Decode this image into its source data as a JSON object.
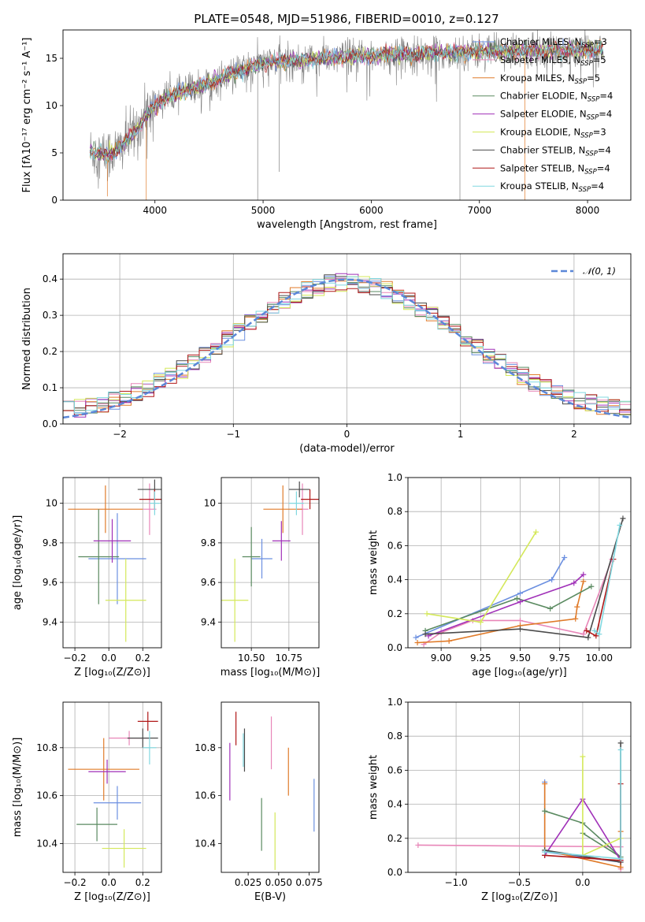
{
  "colors": {
    "Chabrier MILES": "#6b8fe0",
    "Salpeter MILES": "#e886b8",
    "Kroupa MILES": "#e07b2a",
    "Chabrier ELODIE": "#5a8a60",
    "Salpeter ELODIE": "#a030b8",
    "Kroupa ELODIE": "#d4e85a",
    "Chabrier STELIB": "#4a4a4a",
    "Salpeter STELIB": "#b01818",
    "Kroupa STELIB": "#80d8e0",
    "gauss": "#5b87d8",
    "grid": "#b0b0b0"
  },
  "chart_data": [
    {
      "id": "spectrum",
      "type": "line",
      "title": "PLATE=0548, MJD=51986, FIBERID=0010, z=0.127",
      "xlabel": "wavelength [Angstrom, rest frame]",
      "ylabel": "Flux [fλ10⁻¹⁷ erg cm⁻² s⁻¹ A⁻¹]",
      "xlim": [
        3150,
        8400
      ],
      "ylim": [
        0,
        18
      ],
      "xticks": [
        "4000",
        "5000",
        "6000",
        "7000",
        "8000"
      ],
      "yticks": [
        "0",
        "5",
        "10",
        "15"
      ],
      "grid": false,
      "legend_position": "right",
      "continuum": [
        [
          3400,
          5.2
        ],
        [
          3550,
          4.8
        ],
        [
          3650,
          5.2
        ],
        [
          3800,
          7
        ],
        [
          3950,
          9.5
        ],
        [
          4100,
          10.8
        ],
        [
          4300,
          11.6
        ],
        [
          4500,
          12.4
        ],
        [
          4700,
          13.3
        ],
        [
          5000,
          14.5
        ],
        [
          5300,
          14.8
        ],
        [
          5600,
          15.0
        ],
        [
          6000,
          15.3
        ],
        [
          6500,
          15.5
        ],
        [
          7000,
          15.7
        ],
        [
          7500,
          15.8
        ],
        [
          8000,
          15.9
        ],
        [
          8150,
          16.0
        ]
      ],
      "legend": [
        {
          "label": "Chabrier MILES, N_SSP=3",
          "pre": "Chabrier MILES, N",
          "sub": "SSP",
          "post": "=3"
        },
        {
          "label": "Salpeter MILES, N_SSP=5",
          "pre": "Salpeter MILES, N",
          "sub": "SSP",
          "post": "=5"
        },
        {
          "label": "Kroupa MILES, N_SSP=5",
          "pre": "Kroupa MILES, N",
          "sub": "SSP",
          "post": "=5"
        },
        {
          "label": "Chabrier ELODIE, N_SSP=4",
          "pre": "Chabrier ELODIE, N",
          "sub": "SSP",
          "post": "=4"
        },
        {
          "label": "Salpeter ELODIE, N_SSP=4",
          "pre": "Salpeter ELODIE, N",
          "sub": "SSP",
          "post": "=4"
        },
        {
          "label": "Kroupa ELODIE, N_SSP=3",
          "pre": "Kroupa ELODIE, N",
          "sub": "SSP",
          "post": "=3"
        },
        {
          "label": "Chabrier STELIB, N_SSP=4",
          "pre": "Chabrier STELIB, N",
          "sub": "SSP",
          "post": "=4"
        },
        {
          "label": "Salpeter STELIB, N_SSP=4",
          "pre": "Salpeter STELIB, N",
          "sub": "SSP",
          "post": "=4"
        },
        {
          "label": "Kroupa STELIB, N_SSP=4",
          "pre": "Kroupa STELIB, N",
          "sub": "SSP",
          "post": "=4"
        }
      ]
    },
    {
      "id": "residuals",
      "type": "line",
      "xlabel": "(data-model)/error",
      "ylabel": "Normed distribution",
      "xlim": [
        -2.5,
        2.5
      ],
      "ylim": [
        0,
        0.47
      ],
      "xticks": [
        -2,
        -1,
        0,
        1,
        2
      ],
      "xtick_labels": [
        "−2",
        "−1",
        "0",
        "1",
        "2"
      ],
      "yticks": [
        0,
        0.1,
        0.2,
        0.3,
        0.4
      ],
      "ytick_labels": [
        "0.0",
        "0.1",
        "0.2",
        "0.3",
        "0.4"
      ],
      "grid": true,
      "legend": "𝒩(0, 1)",
      "legend_position": "top-right",
      "histogram_bin_width": 0.1,
      "reference_curve": "standard normal N(0,1)"
    },
    {
      "id": "age-vs-Z",
      "type": "scatter",
      "xlabel": "Z [log₁₀(Z/Z⊙)]",
      "ylabel": "age  [log₁₀(age/yr)]",
      "xlim": [
        -0.27,
        0.31
      ],
      "ylim": [
        9.27,
        10.13
      ],
      "xticks": [
        -0.2,
        0.0,
        0.2
      ],
      "xtick_labels": [
        "−0.2",
        "0.0",
        "0.2"
      ],
      "yticks": [
        9.4,
        9.6,
        9.8,
        10.0
      ],
      "grid": true,
      "points": [
        {
          "series": "Chabrier MILES",
          "x": 0.05,
          "xerr": 0.17,
          "y": 9.72,
          "yerr": 0.23
        },
        {
          "series": "Salpeter MILES",
          "x": 0.24,
          "xerr": 0.04,
          "y": 9.97,
          "yerr": 0.13
        },
        {
          "series": "Kroupa MILES",
          "x": -0.02,
          "xerr": 0.22,
          "y": 9.97,
          "yerr": 0.12
        },
        {
          "series": "Chabrier ELODIE",
          "x": -0.06,
          "xerr": 0.12,
          "y": 9.73,
          "yerr": 0.24
        },
        {
          "series": "Salpeter ELODIE",
          "x": 0.02,
          "xerr": 0.11,
          "y": 9.81,
          "yerr": 0.11
        },
        {
          "series": "Kroupa ELODIE",
          "x": 0.1,
          "xerr": 0.12,
          "y": 9.51,
          "yerr": 0.21
        },
        {
          "series": "Chabrier STELIB",
          "x": 0.27,
          "xerr": 0.1,
          "y": 10.07,
          "yerr": 0.05
        },
        {
          "series": "Salpeter STELIB",
          "x": 0.27,
          "xerr": 0.09,
          "y": 10.02,
          "yerr": 0.05
        },
        {
          "series": "Kroupa STELIB",
          "x": 0.27,
          "xerr": 0.03,
          "y": 10.0,
          "yerr": 0.06
        }
      ]
    },
    {
      "id": "age-vs-mass",
      "type": "scatter",
      "xlabel": "mass [log₁₀(M/M⊙)]",
      "ylabel": "",
      "xlim": [
        10.3,
        10.95
      ],
      "ylim": [
        9.27,
        10.13
      ],
      "xticks": [
        10.5,
        10.75
      ],
      "xtick_labels": [
        "10.50",
        "10.75"
      ],
      "yticks": [
        9.4,
        9.6,
        9.8,
        10.0
      ],
      "grid": true,
      "points": [
        {
          "series": "Chabrier MILES",
          "x": 10.57,
          "xerr": 0.07,
          "y": 9.72,
          "yerr": 0.1
        },
        {
          "series": "Salpeter MILES",
          "x": 10.84,
          "xerr": 0.04,
          "y": 9.97,
          "yerr": 0.13
        },
        {
          "series": "Kroupa MILES",
          "x": 10.71,
          "xerr": 0.13,
          "y": 9.97,
          "yerr": 0.12
        },
        {
          "series": "Chabrier ELODIE",
          "x": 10.5,
          "xerr": 0.06,
          "y": 9.73,
          "yerr": 0.15
        },
        {
          "series": "Salpeter ELODIE",
          "x": 10.7,
          "xerr": 0.06,
          "y": 9.81,
          "yerr": 0.1
        },
        {
          "series": "Kroupa ELODIE",
          "x": 10.39,
          "xerr": 0.09,
          "y": 9.51,
          "yerr": 0.21
        },
        {
          "series": "Chabrier STELIB",
          "x": 10.82,
          "xerr": 0.07,
          "y": 10.07,
          "yerr": 0.04
        },
        {
          "series": "Salpeter STELIB",
          "x": 10.89,
          "xerr": 0.06,
          "y": 10.02,
          "yerr": 0.05
        },
        {
          "series": "Kroupa STELIB",
          "x": 10.8,
          "xerr": 0.05,
          "y": 10.0,
          "yerr": 0.06
        }
      ]
    },
    {
      "id": "weight-vs-age",
      "type": "line",
      "xlabel": "age  [log₁₀(age/yr)]",
      "ylabel": "mass weight",
      "xlim": [
        8.79,
        10.2
      ],
      "ylim": [
        0,
        1
      ],
      "xticks": [
        9.0,
        9.25,
        9.5,
        9.75,
        10.0
      ],
      "xtick_labels": [
        "9.00",
        "9.25",
        "9.50",
        "9.75",
        "10.00"
      ],
      "yticks": [
        0,
        0.2,
        0.4,
        0.6,
        0.8,
        1.0
      ],
      "ytick_labels": [
        "0.0",
        "0.2",
        "0.4",
        "0.6",
        "0.8",
        "1.0"
      ],
      "grid": true,
      "series": [
        {
          "name": "Chabrier MILES",
          "points": [
            [
              8.84,
              0.06
            ],
            [
              9.5,
              0.32
            ],
            [
              9.7,
              0.4
            ],
            [
              9.78,
              0.53
            ]
          ]
        },
        {
          "name": "Salpeter MILES",
          "points": [
            [
              8.89,
              0.02
            ],
            [
              9.0,
              0.09
            ],
            [
              9.2,
              0.16
            ],
            [
              9.5,
              0.16
            ],
            [
              9.9,
              0.08
            ],
            [
              10.08,
              0.52
            ]
          ]
        },
        {
          "name": "Kroupa MILES",
          "points": [
            [
              8.85,
              0.03
            ],
            [
              9.05,
              0.04
            ],
            [
              9.5,
              0.13
            ],
            [
              9.85,
              0.17
            ],
            [
              9.86,
              0.24
            ],
            [
              9.9,
              0.39
            ]
          ]
        },
        {
          "name": "Chabrier ELODIE",
          "points": [
            [
              8.9,
              0.1
            ],
            [
              9.48,
              0.29
            ],
            [
              9.69,
              0.23
            ],
            [
              9.95,
              0.36
            ]
          ]
        },
        {
          "name": "Salpeter ELODIE",
          "points": [
            [
              8.92,
              0.07
            ],
            [
              9.5,
              0.27
            ],
            [
              9.84,
              0.38
            ],
            [
              9.9,
              0.43
            ]
          ]
        },
        {
          "name": "Kroupa ELODIE",
          "points": [
            [
              8.91,
              0.2
            ],
            [
              9.25,
              0.15
            ],
            [
              9.6,
              0.68
            ]
          ]
        },
        {
          "name": "Chabrier STELIB",
          "points": [
            [
              8.9,
              0.08
            ],
            [
              9.5,
              0.11
            ],
            [
              9.93,
              0.06
            ],
            [
              10.15,
              0.76
            ]
          ]
        },
        {
          "name": "Salpeter STELIB",
          "points": [
            [
              9.92,
              0.1
            ],
            [
              9.98,
              0.07
            ],
            [
              10.09,
              0.52
            ]
          ]
        },
        {
          "name": "Kroupa STELIB",
          "points": [
            [
              9.97,
              0.1
            ],
            [
              10.0,
              0.08
            ],
            [
              10.13,
              0.72
            ]
          ]
        }
      ]
    },
    {
      "id": "mass-vs-Z",
      "type": "scatter",
      "xlabel": "Z [log₁₀(Z/Z⊙)]",
      "ylabel": "mass [log₁₀(M/M⊙)]",
      "xlim": [
        -0.27,
        0.31
      ],
      "ylim": [
        10.28,
        10.99
      ],
      "xticks": [
        -0.2,
        0.0,
        0.2
      ],
      "xtick_labels": [
        "−0.2",
        "0.0",
        "0.2"
      ],
      "yticks": [
        10.4,
        10.6,
        10.8
      ],
      "grid": true,
      "points": [
        {
          "series": "Chabrier MILES",
          "x": 0.05,
          "xerr": 0.14,
          "y": 10.57,
          "yerr": 0.07
        },
        {
          "series": "Salpeter MILES",
          "x": 0.12,
          "xerr": 0.12,
          "y": 10.84,
          "yerr": 0.03
        },
        {
          "series": "Kroupa MILES",
          "x": -0.03,
          "xerr": 0.21,
          "y": 10.71,
          "yerr": 0.13
        },
        {
          "series": "Chabrier ELODIE",
          "x": -0.07,
          "xerr": 0.12,
          "y": 10.48,
          "yerr": 0.07
        },
        {
          "series": "Salpeter ELODIE",
          "x": -0.01,
          "xerr": 0.11,
          "y": 10.7,
          "yerr": 0.05
        },
        {
          "series": "Kroupa ELODIE",
          "x": 0.09,
          "xerr": 0.13,
          "y": 10.38,
          "yerr": 0.08
        },
        {
          "series": "Chabrier STELIB",
          "x": 0.2,
          "xerr": 0.09,
          "y": 10.84,
          "yerr": 0.04
        },
        {
          "series": "Salpeter STELIB",
          "x": 0.23,
          "xerr": 0.06,
          "y": 10.91,
          "yerr": 0.04
        },
        {
          "series": "Kroupa STELIB",
          "x": 0.24,
          "xerr": 0.04,
          "y": 10.8,
          "yerr": 0.07
        }
      ]
    },
    {
      "id": "mass-vs-ebv",
      "type": "scatter",
      "xlabel": "E(B-V)",
      "ylabel": "",
      "xlim": [
        0.003,
        0.083
      ],
      "ylim": [
        10.28,
        10.99
      ],
      "xticks": [
        0.025,
        0.05,
        0.075
      ],
      "xtick_labels": [
        "0.025",
        "0.050",
        "0.075"
      ],
      "yticks": [
        10.4,
        10.6,
        10.8
      ],
      "grid": false,
      "points": [
        {
          "series": "Chabrier MILES",
          "x": 0.079,
          "y": 10.56,
          "yerr": 0.11
        },
        {
          "series": "Salpeter MILES",
          "x": 0.044,
          "y": 10.82,
          "yerr": 0.11
        },
        {
          "series": "Kroupa MILES",
          "x": 0.058,
          "y": 10.7,
          "yerr": 0.1
        },
        {
          "series": "Chabrier ELODIE",
          "x": 0.036,
          "y": 10.48,
          "yerr": 0.11
        },
        {
          "series": "Salpeter ELODIE",
          "x": 0.01,
          "y": 10.7,
          "yerr": 0.12
        },
        {
          "series": "Kroupa ELODIE",
          "x": 0.047,
          "y": 10.41,
          "yerr": 0.12
        },
        {
          "series": "Chabrier STELIB",
          "x": 0.022,
          "y": 10.79,
          "yerr": 0.09
        },
        {
          "series": "Salpeter STELIB",
          "x": 0.015,
          "y": 10.88,
          "yerr": 0.07
        },
        {
          "series": "Kroupa STELIB",
          "x": 0.021,
          "y": 10.79,
          "yerr": 0.07
        }
      ]
    },
    {
      "id": "weight-vs-Z",
      "type": "line",
      "xlabel": "Z [log₁₀(Z/Z⊙)]",
      "ylabel": "mass weight",
      "xlim": [
        -1.38,
        0.38
      ],
      "ylim": [
        0,
        1
      ],
      "xticks": [
        -1.0,
        -0.5,
        0.0
      ],
      "xtick_labels": [
        "−1.0",
        "−0.5",
        "0.0"
      ],
      "yticks": [
        0,
        0.2,
        0.4,
        0.6,
        0.8,
        1.0
      ],
      "ytick_labels": [
        "0.0",
        "0.2",
        "0.4",
        "0.6",
        "0.8",
        "1.0"
      ],
      "grid": true,
      "series": [
        {
          "name": "Chabrier MILES",
          "points": [
            [
              -0.3,
              0.53
            ],
            [
              -0.3,
              0.12
            ],
            [
              0.3,
              0.06
            ]
          ]
        },
        {
          "name": "Salpeter MILES",
          "points": [
            [
              -1.3,
              0.16
            ],
            [
              0.3,
              0.15
            ],
            [
              0.3,
              0.02
            ]
          ]
        },
        {
          "name": "Kroupa MILES",
          "points": [
            [
              -0.3,
              0.52
            ],
            [
              -0.3,
              0.13
            ],
            [
              0.3,
              0.03
            ],
            [
              0.3,
              0.24
            ]
          ]
        },
        {
          "name": "Chabrier ELODIE",
          "points": [
            [
              -0.3,
              0.36
            ],
            [
              0.0,
              0.29
            ],
            [
              0.3,
              0.09
            ],
            [
              0.0,
              0.23
            ]
          ]
        },
        {
          "name": "Salpeter ELODIE",
          "points": [
            [
              -0.3,
              0.1
            ],
            [
              0.0,
              0.43
            ],
            [
              0.3,
              0.07
            ]
          ]
        },
        {
          "name": "Kroupa ELODIE",
          "points": [
            [
              0.0,
              0.68
            ],
            [
              0.0,
              0.1
            ],
            [
              0.3,
              0.2
            ]
          ]
        },
        {
          "name": "Chabrier STELIB",
          "points": [
            [
              -0.3,
              0.13
            ],
            [
              0.3,
              0.06
            ],
            [
              0.3,
              0.76
            ]
          ]
        },
        {
          "name": "Salpeter STELIB",
          "points": [
            [
              -0.3,
              0.1
            ],
            [
              0.3,
              0.07
            ],
            [
              0.3,
              0.52
            ]
          ]
        },
        {
          "name": "Kroupa STELIB",
          "points": [
            [
              -0.3,
              0.12
            ],
            [
              0.3,
              0.08
            ],
            [
              0.3,
              0.72
            ]
          ]
        }
      ]
    }
  ]
}
